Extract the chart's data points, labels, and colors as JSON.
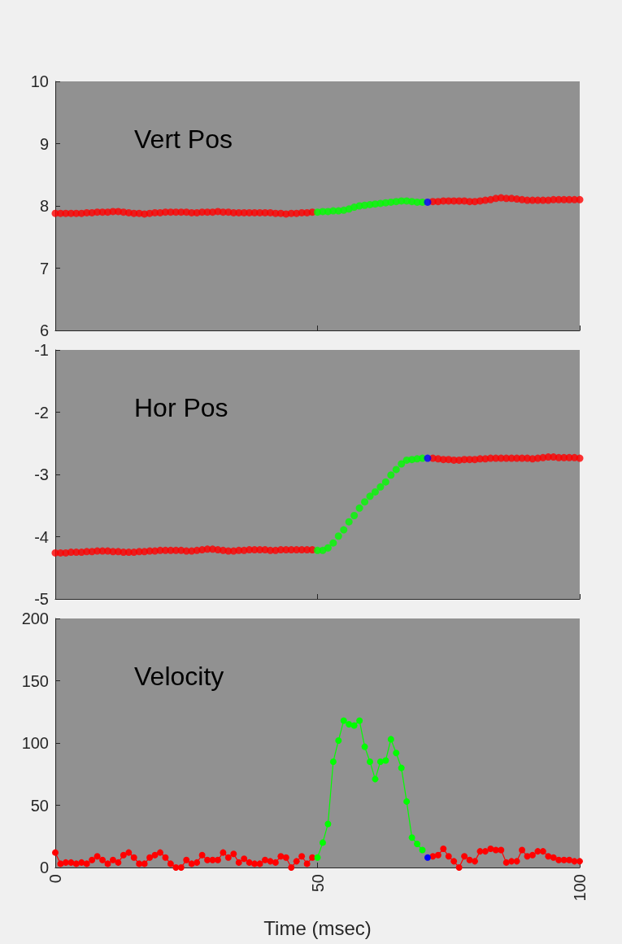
{
  "chart_data": [
    {
      "type": "scatter",
      "annotations": [
        "Vert Pos"
      ],
      "xlim": [
        0,
        100
      ],
      "xticks": [
        0,
        50,
        100
      ],
      "ylim": [
        6,
        10
      ],
      "yticks": [
        6,
        7,
        8,
        9,
        10
      ],
      "tick_labels": "y",
      "grid": false,
      "marker": "circle",
      "series": [
        {
          "color": "#ff0000",
          "x": [
            0,
            1,
            2,
            3,
            4,
            5,
            6,
            7,
            8,
            9,
            10,
            11,
            12,
            13,
            14,
            15,
            16,
            17,
            18,
            19,
            20,
            21,
            22,
            23,
            24,
            25,
            26,
            27,
            28,
            29,
            30,
            31,
            32,
            33,
            34,
            35,
            36,
            37,
            38,
            39,
            40,
            41,
            42,
            43,
            44,
            45,
            46,
            47,
            48,
            49
          ],
          "values": [
            7.88,
            7.88,
            7.88,
            7.88,
            7.88,
            7.88,
            7.89,
            7.89,
            7.9,
            7.9,
            7.9,
            7.91,
            7.91,
            7.9,
            7.89,
            7.88,
            7.88,
            7.87,
            7.88,
            7.89,
            7.89,
            7.9,
            7.9,
            7.9,
            7.9,
            7.9,
            7.89,
            7.89,
            7.9,
            7.9,
            7.9,
            7.91,
            7.9,
            7.9,
            7.89,
            7.89,
            7.89,
            7.89,
            7.89,
            7.89,
            7.89,
            7.89,
            7.88,
            7.88,
            7.87,
            7.88,
            7.88,
            7.89,
            7.89,
            7.9
          ]
        },
        {
          "color": "#00ff00",
          "x": [
            50,
            51,
            52,
            53,
            54,
            55,
            56,
            57,
            58,
            59,
            60,
            61,
            62,
            63,
            64,
            65,
            66,
            67,
            68,
            69,
            70
          ],
          "values": [
            7.9,
            7.91,
            7.91,
            7.92,
            7.92,
            7.93,
            7.95,
            7.98,
            8.0,
            8.01,
            8.02,
            8.03,
            8.04,
            8.05,
            8.06,
            8.07,
            8.08,
            8.08,
            8.07,
            8.06,
            8.06
          ]
        },
        {
          "color": "#0000ff",
          "x": [
            71
          ],
          "values": [
            8.06
          ]
        },
        {
          "color": "#ff0000",
          "x": [
            72,
            73,
            74,
            75,
            76,
            77,
            78,
            79,
            80,
            81,
            82,
            83,
            84,
            85,
            86,
            87,
            88,
            89,
            90,
            91,
            92,
            93,
            94,
            95,
            96,
            97,
            98,
            99,
            100
          ],
          "values": [
            8.07,
            8.07,
            8.08,
            8.08,
            8.08,
            8.08,
            8.08,
            8.07,
            8.07,
            8.08,
            8.09,
            8.1,
            8.12,
            8.13,
            8.12,
            8.12,
            8.11,
            8.1,
            8.09,
            8.09,
            8.09,
            8.09,
            8.09,
            8.1,
            8.1,
            8.1,
            8.1,
            8.1,
            8.1
          ]
        }
      ]
    },
    {
      "type": "scatter",
      "annotations": [
        "Hor Pos"
      ],
      "xlim": [
        0,
        100
      ],
      "xticks": [
        0,
        50,
        100
      ],
      "ylim": [
        -5,
        -1
      ],
      "yticks": [
        -5,
        -4,
        -3,
        -2,
        -1
      ],
      "tick_labels": "y",
      "grid": false,
      "marker": "circle",
      "series": [
        {
          "color": "#ff0000",
          "x": [
            0,
            1,
            2,
            3,
            4,
            5,
            6,
            7,
            8,
            9,
            10,
            11,
            12,
            13,
            14,
            15,
            16,
            17,
            18,
            19,
            20,
            21,
            22,
            23,
            24,
            25,
            26,
            27,
            28,
            29,
            30,
            31,
            32,
            33,
            34,
            35,
            36,
            37,
            38,
            39,
            40,
            41,
            42,
            43,
            44,
            45,
            46,
            47,
            48,
            49
          ],
          "values": [
            -4.26,
            -4.26,
            -4.26,
            -4.25,
            -4.25,
            -4.25,
            -4.24,
            -4.24,
            -4.23,
            -4.23,
            -4.23,
            -4.24,
            -4.24,
            -4.25,
            -4.25,
            -4.25,
            -4.24,
            -4.24,
            -4.23,
            -4.23,
            -4.22,
            -4.22,
            -4.22,
            -4.22,
            -4.22,
            -4.23,
            -4.23,
            -4.22,
            -4.21,
            -4.2,
            -4.2,
            -4.21,
            -4.22,
            -4.23,
            -4.23,
            -4.22,
            -4.22,
            -4.21,
            -4.21,
            -4.21,
            -4.21,
            -4.22,
            -4.22,
            -4.21,
            -4.21,
            -4.21,
            -4.21,
            -4.21,
            -4.21,
            -4.21
          ]
        },
        {
          "color": "#00ff00",
          "x": [
            50,
            51,
            52,
            53,
            54,
            55,
            56,
            57,
            58,
            59,
            60,
            61,
            62,
            63,
            64,
            65,
            66,
            67,
            68,
            69,
            70
          ],
          "values": [
            -4.22,
            -4.22,
            -4.18,
            -4.1,
            -3.99,
            -3.89,
            -3.76,
            -3.66,
            -3.54,
            -3.44,
            -3.35,
            -3.28,
            -3.2,
            -3.12,
            -3.01,
            -2.92,
            -2.83,
            -2.77,
            -2.76,
            -2.75,
            -2.74
          ]
        },
        {
          "color": "#0000ff",
          "x": [
            71
          ],
          "values": [
            -2.74
          ]
        },
        {
          "color": "#ff0000",
          "x": [
            72,
            73,
            74,
            75,
            76,
            77,
            78,
            79,
            80,
            81,
            82,
            83,
            84,
            85,
            86,
            87,
            88,
            89,
            90,
            91,
            92,
            93,
            94,
            95,
            96,
            97,
            98,
            99,
            100
          ],
          "values": [
            -2.74,
            -2.75,
            -2.76,
            -2.76,
            -2.77,
            -2.77,
            -2.76,
            -2.76,
            -2.76,
            -2.75,
            -2.75,
            -2.74,
            -2.74,
            -2.74,
            -2.74,
            -2.74,
            -2.74,
            -2.74,
            -2.74,
            -2.75,
            -2.74,
            -2.73,
            -2.72,
            -2.72,
            -2.73,
            -2.73,
            -2.73,
            -2.73,
            -2.74
          ]
        }
      ]
    },
    {
      "type": "line",
      "annotations": [
        "Velocity"
      ],
      "xlabel": "Time (msec)",
      "xlim": [
        0,
        100
      ],
      "xticks": [
        0,
        50,
        100
      ],
      "ylim": [
        0,
        200
      ],
      "yticks": [
        0,
        50,
        100,
        150,
        200
      ],
      "grid": false,
      "marker": "circle",
      "line_style": "solid",
      "series": [
        {
          "color": "#ff0000",
          "x": [
            0,
            1,
            2,
            3,
            4,
            5,
            6,
            7,
            8,
            9,
            10,
            11,
            12,
            13,
            14,
            15,
            16,
            17,
            18,
            19,
            20,
            21,
            22,
            23,
            24,
            25,
            26,
            27,
            28,
            29,
            30,
            31,
            32,
            33,
            34,
            35,
            36,
            37,
            38,
            39,
            40,
            41,
            42,
            43,
            44,
            45,
            46,
            47,
            48,
            49
          ],
          "values": [
            12,
            3,
            4,
            4,
            3,
            4,
            3,
            6,
            9,
            6,
            3,
            6,
            4,
            10,
            12,
            8,
            3,
            3,
            8,
            10,
            12,
            8,
            3,
            0,
            0,
            6,
            3,
            4,
            10,
            6,
            6,
            6,
            12,
            8,
            11,
            4,
            7,
            4,
            3,
            3,
            6,
            5,
            4,
            9,
            8,
            0,
            5,
            9,
            3,
            8
          ]
        },
        {
          "color": "#00ff00",
          "x": [
            50,
            51,
            52,
            53,
            54,
            55,
            56,
            57,
            58,
            59,
            60,
            61,
            62,
            63,
            64,
            65,
            66,
            67,
            68,
            69,
            70
          ],
          "values": [
            8,
            20,
            35,
            85,
            102,
            118,
            115,
            114,
            118,
            97,
            85,
            71,
            85,
            86,
            103,
            92,
            80,
            53,
            24,
            19,
            14
          ]
        },
        {
          "color": "#0000ff",
          "x": [
            71
          ],
          "values": [
            8
          ]
        },
        {
          "color": "#ff0000",
          "x": [
            72,
            73,
            74,
            75,
            76,
            77,
            78,
            79,
            80,
            81,
            82,
            83,
            84,
            85,
            86,
            87,
            88,
            89,
            90,
            91,
            92,
            93,
            94,
            95,
            96,
            97,
            98,
            99,
            100
          ],
          "values": [
            9,
            10,
            15,
            9,
            5,
            0,
            9,
            6,
            5,
            13,
            13,
            15,
            14,
            14,
            4,
            5,
            5,
            14,
            9,
            10,
            13,
            13,
            9,
            8,
            6,
            6,
            6,
            5,
            5
          ]
        }
      ]
    }
  ]
}
